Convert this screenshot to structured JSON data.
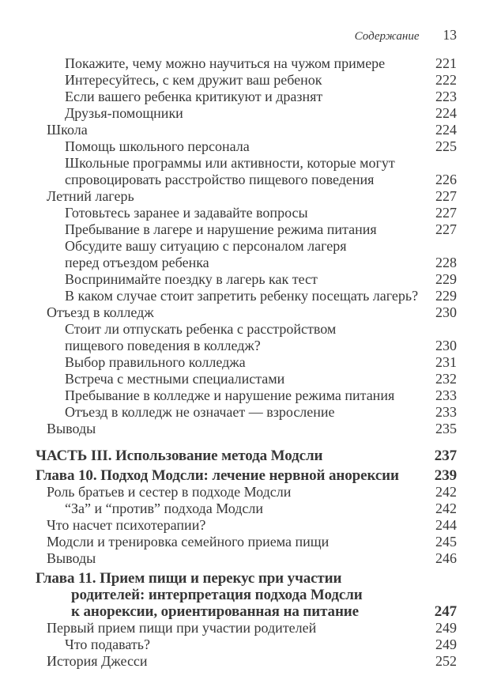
{
  "header": {
    "title": "Содержание",
    "page_number": "13"
  },
  "colors": {
    "text": "#373737",
    "background": "#ffffff"
  },
  "toc": {
    "entries": [
      {
        "level": 2,
        "lines": [
          "Покажите, чему можно научиться на чужом примере"
        ],
        "page": "221"
      },
      {
        "level": 2,
        "lines": [
          "Интересуйтесь, с кем дружит ваш ребенок"
        ],
        "page": "222"
      },
      {
        "level": 2,
        "lines": [
          "Если вашего ребенка критикуют и дразнят"
        ],
        "page": "223"
      },
      {
        "level": 2,
        "lines": [
          "Друзья-помощники"
        ],
        "page": "224"
      },
      {
        "level": 1,
        "lines": [
          "Школа"
        ],
        "page": "224"
      },
      {
        "level": 2,
        "lines": [
          "Помощь школьного персонала"
        ],
        "page": "225"
      },
      {
        "level": 2,
        "lines": [
          "Школьные программы или активности, которые могут",
          "спровоцировать расстройство пищевого поведения"
        ],
        "page": "226"
      },
      {
        "level": 1,
        "lines": [
          "Летний лагерь"
        ],
        "page": "227"
      },
      {
        "level": 2,
        "lines": [
          "Готовьтесь заранее и задавайте вопросы"
        ],
        "page": "227"
      },
      {
        "level": 2,
        "lines": [
          "Пребывание в лагере и нарушение режима питания"
        ],
        "page": "227"
      },
      {
        "level": 2,
        "lines": [
          "Обсудите вашу ситуацию с персоналом лагеря",
          "перед отъездом ребенка"
        ],
        "page": "228"
      },
      {
        "level": 2,
        "lines": [
          "Воспринимайте поездку в лагерь как тест"
        ],
        "page": "229"
      },
      {
        "level": 2,
        "lines": [
          "В каком случае стоит запретить ребенку посещать лагерь?"
        ],
        "page": "229"
      },
      {
        "level": 1,
        "lines": [
          "Отъезд в колледж"
        ],
        "page": "230"
      },
      {
        "level": 2,
        "lines": [
          "Стоит ли отпускать ребенка с расстройством",
          "пищевого поведения в колледж?"
        ],
        "page": "230"
      },
      {
        "level": 2,
        "lines": [
          "Выбор правильного колледжа"
        ],
        "page": "231"
      },
      {
        "level": 2,
        "lines": [
          "Встреча с местными специалистами"
        ],
        "page": "232"
      },
      {
        "level": 2,
        "lines": [
          "Пребывание в колледже и нарушение режима питания"
        ],
        "page": "233"
      },
      {
        "level": 2,
        "lines": [
          "Отъезд в колледж не означает — взросление"
        ],
        "page": "233"
      },
      {
        "level": 1,
        "lines": [
          "Выводы"
        ],
        "page": "235"
      },
      {
        "level": 0,
        "style": "part",
        "lines": [
          "ЧАСТЬ III. Использование метода Модсли"
        ],
        "page": "237"
      },
      {
        "level": 0,
        "style": "chapter",
        "lines": [
          "Глава 10. Подход Модсли: лечение нервной анорексии"
        ],
        "page": "239"
      },
      {
        "level": 1,
        "lines": [
          "Роль братьев и сестер в подходе Модсли"
        ],
        "page": "242"
      },
      {
        "level": 2,
        "lines": [
          "“За” и “против” подхода Модсли"
        ],
        "page": "242"
      },
      {
        "level": 1,
        "lines": [
          "Что насчет психотерапии?"
        ],
        "page": "244"
      },
      {
        "level": 1,
        "lines": [
          "Модсли и тренировка семейного приема пищи"
        ],
        "page": "245"
      },
      {
        "level": 1,
        "lines": [
          "Выводы"
        ],
        "page": "246"
      },
      {
        "level": 0,
        "style": "chapter",
        "lines": [
          "Глава 11. Прием пищи и перекус при участии",
          "родителей: интерпретация подхода Модсли",
          "к анорексии, ориентированная на питание"
        ],
        "page": "247"
      },
      {
        "level": 1,
        "lines": [
          "Первый прием пищи при участии родителей"
        ],
        "page": "249"
      },
      {
        "level": 2,
        "lines": [
          "Что подавать?"
        ],
        "page": "249"
      },
      {
        "level": 1,
        "lines": [
          "История Джесси"
        ],
        "page": "252"
      }
    ]
  }
}
